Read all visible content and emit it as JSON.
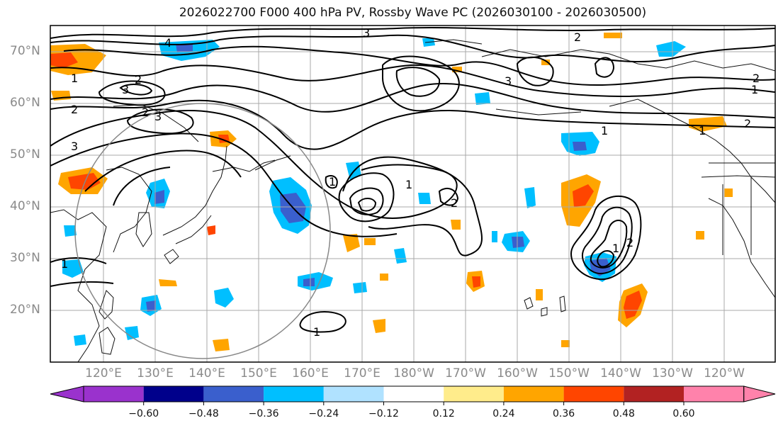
{
  "title": "2026022700 F000 400 hPa PV, Rossby Wave PC (2026030100 - 2026030500)",
  "lat_labels": [
    "70°N",
    "60°N",
    "50°N",
    "40°N",
    "30°N",
    "20°N"
  ],
  "lon_labels": [
    "120°E",
    "130°E",
    "140°E",
    "150°E",
    "160°E",
    "170°E",
    "180°W",
    "170°W",
    "160°W",
    "150°W",
    "140°W",
    "130°W",
    "120°W"
  ],
  "colorbar": {
    "ticks": [
      "−0.60",
      "−0.48",
      "−0.36",
      "−0.24",
      "−0.12",
      "0.12",
      "0.24",
      "0.36",
      "0.48",
      "0.60"
    ],
    "colors": [
      "#9a32cd",
      "#00008b",
      "#3a5fcd",
      "#00bfff",
      "#b0e2ff",
      "#ffffff",
      "#ffec8b",
      "#ffa500",
      "#ff4500",
      "#b22222",
      "#ff82ab"
    ]
  },
  "contour_labels": [
    "4",
    "3",
    "2",
    "1",
    "3",
    "2",
    "2",
    "3",
    "3",
    "2",
    "1",
    "1",
    "2",
    "1",
    "3",
    "2",
    "1",
    "1",
    "1",
    "2",
    "1",
    "1",
    "2"
  ]
}
